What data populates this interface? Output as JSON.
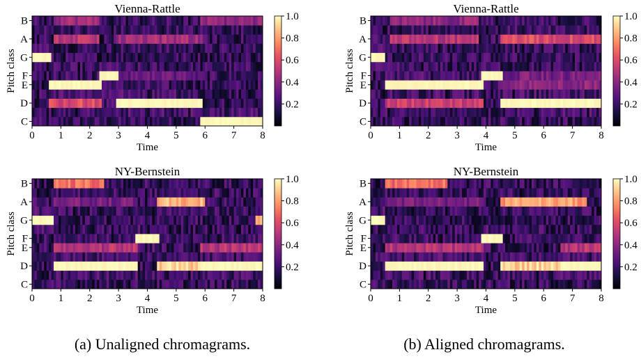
{
  "chart_data": [
    {
      "type": "heatmap",
      "title": "Vienna-Rattle",
      "xlabel": "Time",
      "ylabel": "Pitch class",
      "xlim": [
        0,
        8
      ],
      "x_ticks": [
        "0",
        "1",
        "2",
        "3",
        "4",
        "5",
        "6",
        "7",
        "8"
      ],
      "y_tick_labels": [
        "C",
        "D",
        "E",
        "F",
        "G",
        "A",
        "B"
      ],
      "colorbar_ticks": [
        "0.2",
        "0.4",
        "0.6",
        "0.8",
        "1.0"
      ],
      "colorbar_range": [
        0,
        1
      ],
      "segments": [
        {
          "start": 0,
          "end": 0.15,
          "pc": "C",
          "value": 0.3
        },
        {
          "start": 0,
          "end": 0.6,
          "pc": "G",
          "value": 1.0
        },
        {
          "start": 0.6,
          "end": 2.35,
          "pc": "E",
          "value": 1.0
        },
        {
          "start": 0.6,
          "end": 2.35,
          "pc": "D",
          "value": 0.6
        },
        {
          "start": 0.8,
          "end": 2.3,
          "pc": "A",
          "value": 0.5
        },
        {
          "start": 0.8,
          "end": 2.3,
          "pc": "B",
          "value": 0.45
        },
        {
          "start": 2.35,
          "end": 2.95,
          "pc": "F",
          "value": 1.0
        },
        {
          "start": 2.95,
          "end": 5.85,
          "pc": "D",
          "value": 1.0
        },
        {
          "start": 2.95,
          "end": 5.85,
          "pc": "A",
          "value": 0.45
        },
        {
          "start": 2.95,
          "end": 5.85,
          "pc": "F",
          "value": 0.3
        },
        {
          "start": 5.85,
          "end": 8,
          "pc": "C",
          "value": 1.0
        },
        {
          "start": 5.85,
          "end": 8,
          "pc": "B",
          "value": 0.4
        }
      ]
    },
    {
      "type": "heatmap",
      "title": "Vienna-Rattle",
      "xlabel": "Time",
      "ylabel": "Pitch class",
      "xlim": [
        0,
        8
      ],
      "x_ticks": [
        "0",
        "1",
        "2",
        "3",
        "4",
        "5",
        "6",
        "7",
        "8"
      ],
      "y_tick_labels": [
        "C",
        "D",
        "E",
        "F",
        "G",
        "A",
        "B"
      ],
      "colorbar_ticks": [
        "0.2",
        "0.4",
        "0.6",
        "0.8",
        "1.0"
      ],
      "colorbar_range": [
        0,
        1
      ],
      "segments": [
        {
          "start": 0,
          "end": 0.5,
          "pc": "G",
          "value": 1.0
        },
        {
          "start": 0.5,
          "end": 3.85,
          "pc": "E",
          "value": 1.0
        },
        {
          "start": 0.5,
          "end": 3.85,
          "pc": "D",
          "value": 0.55
        },
        {
          "start": 0.7,
          "end": 3.7,
          "pc": "A",
          "value": 0.5
        },
        {
          "start": 0.7,
          "end": 3.7,
          "pc": "B",
          "value": 0.4
        },
        {
          "start": 3.85,
          "end": 4.55,
          "pc": "F",
          "value": 1.0
        },
        {
          "start": 4.55,
          "end": 8,
          "pc": "D",
          "value": 1.0
        },
        {
          "start": 4.55,
          "end": 8,
          "pc": "A",
          "value": 0.6
        },
        {
          "start": 4.55,
          "end": 8,
          "pc": "E",
          "value": 0.4
        },
        {
          "start": 4.55,
          "end": 8,
          "pc": "F",
          "value": 0.35
        }
      ]
    },
    {
      "type": "heatmap",
      "title": "NY-Bernstein",
      "xlabel": "Time",
      "ylabel": "Pitch class",
      "xlim": [
        0,
        8
      ],
      "x_ticks": [
        "0",
        "1",
        "2",
        "3",
        "4",
        "5",
        "6",
        "7",
        "8"
      ],
      "y_tick_labels": [
        "C",
        "D",
        "E",
        "F",
        "G",
        "A",
        "B"
      ],
      "colorbar_ticks": [
        "0.2",
        "0.4",
        "0.6",
        "0.8",
        "1.0"
      ],
      "colorbar_range": [
        0,
        1
      ],
      "segments": [
        {
          "start": 0,
          "end": 0.75,
          "pc": "G",
          "value": 1.0
        },
        {
          "start": 0.75,
          "end": 3.6,
          "pc": "D",
          "value": 1.0
        },
        {
          "start": 0.75,
          "end": 3.6,
          "pc": "E",
          "value": 0.5
        },
        {
          "start": 0.75,
          "end": 2.5,
          "pc": "B",
          "value": 0.7
        },
        {
          "start": 0.75,
          "end": 3.6,
          "pc": "A",
          "value": 0.35
        },
        {
          "start": 3.6,
          "end": 4.4,
          "pc": "F",
          "value": 1.0
        },
        {
          "start": 4.4,
          "end": 5.9,
          "pc": "D",
          "value": 0.9
        },
        {
          "start": 4.4,
          "end": 6.0,
          "pc": "A",
          "value": 0.85
        },
        {
          "start": 5.9,
          "end": 8,
          "pc": "D",
          "value": 1.0
        },
        {
          "start": 5.9,
          "end": 8,
          "pc": "E",
          "value": 0.5
        },
        {
          "start": 7.8,
          "end": 8,
          "pc": "G",
          "value": 0.8
        }
      ]
    },
    {
      "type": "heatmap",
      "title": "NY-Bernstein",
      "xlabel": "Time",
      "ylabel": "Pitch class",
      "xlim": [
        0,
        8
      ],
      "x_ticks": [
        "0",
        "1",
        "2",
        "3",
        "4",
        "5",
        "6",
        "7",
        "8"
      ],
      "y_tick_labels": [
        "C",
        "D",
        "E",
        "F",
        "G",
        "A",
        "B"
      ],
      "colorbar_ticks": [
        "0.2",
        "0.4",
        "0.6",
        "0.8",
        "1.0"
      ],
      "colorbar_range": [
        0,
        1
      ],
      "segments": [
        {
          "start": 0,
          "end": 0.5,
          "pc": "G",
          "value": 1.0
        },
        {
          "start": 0.5,
          "end": 3.85,
          "pc": "D",
          "value": 1.0
        },
        {
          "start": 0.5,
          "end": 3.85,
          "pc": "E",
          "value": 0.5
        },
        {
          "start": 0.5,
          "end": 2.6,
          "pc": "B",
          "value": 0.7
        },
        {
          "start": 0.5,
          "end": 3.85,
          "pc": "A",
          "value": 0.35
        },
        {
          "start": 3.85,
          "end": 4.55,
          "pc": "F",
          "value": 1.0
        },
        {
          "start": 4.55,
          "end": 6.6,
          "pc": "D",
          "value": 0.9
        },
        {
          "start": 4.55,
          "end": 7.5,
          "pc": "A",
          "value": 0.8
        },
        {
          "start": 6.6,
          "end": 8,
          "pc": "D",
          "value": 1.0
        },
        {
          "start": 6.6,
          "end": 8,
          "pc": "E",
          "value": 0.5
        }
      ]
    }
  ],
  "captions": [
    "(a) Unaligned chromagrams.",
    "(b) Aligned chromagrams."
  ]
}
